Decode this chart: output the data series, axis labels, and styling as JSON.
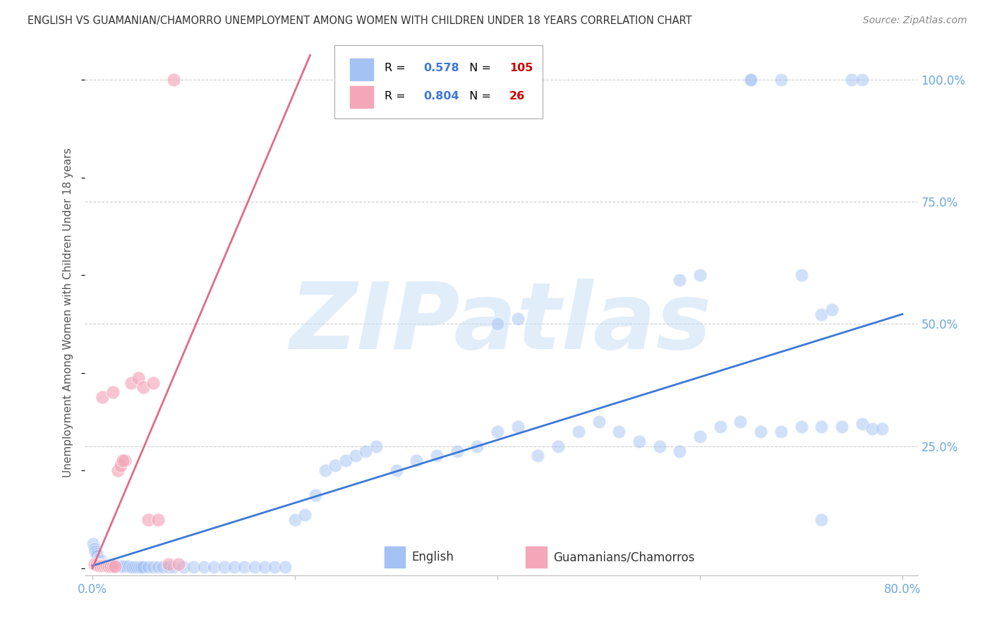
{
  "title": "ENGLISH VS GUAMANIAN/CHAMORRO UNEMPLOYMENT AMONG WOMEN WITH CHILDREN UNDER 18 YEARS CORRELATION CHART",
  "source": "Source: ZipAtlas.com",
  "ylabel": "Unemployment Among Women with Children Under 18 years",
  "xlim": [
    -0.008,
    0.815
  ],
  "ylim": [
    -0.015,
    1.06
  ],
  "english_R": 0.578,
  "english_N": 105,
  "chamorro_R": 0.804,
  "chamorro_N": 26,
  "english_scatter_color": "#a4c2f4",
  "chamorro_scatter_color": "#f4a7b9",
  "english_line_color": "#3c78d8",
  "chamorro_line_color": "#e06c8a",
  "R_label_color": "#000000",
  "R_value_color": "#3c78d8",
  "N_label_color": "#000000",
  "N_value_color": "#cc0000",
  "tick_label_color": "#6fa8dc",
  "ylabel_color": "#555555",
  "title_color": "#333333",
  "source_color": "#888888",
  "grid_color": "#d0d0d0",
  "watermark_color": "#c5dff5",
  "watermark_text": "ZIPatlas",
  "legend_label_english": "English",
  "legend_label_chamorro": "Guamanians/Chamorros",
  "x_ticks": [
    0.0,
    0.2,
    0.4,
    0.6,
    0.8
  ],
  "x_tick_labels": [
    "0.0%",
    "",
    "",
    "",
    "80.0%"
  ],
  "y_ticks": [
    0.0,
    0.25,
    0.5,
    0.75,
    1.0
  ],
  "y_tick_labels": [
    "",
    "25.0%",
    "50.0%",
    "75.0%",
    "100.0%"
  ],
  "english_x": [
    0.001,
    0.002,
    0.003,
    0.004,
    0.005,
    0.006,
    0.007,
    0.008,
    0.009,
    0.01,
    0.011,
    0.012,
    0.013,
    0.014,
    0.015,
    0.016,
    0.017,
    0.018,
    0.019,
    0.02,
    0.021,
    0.022,
    0.023,
    0.024,
    0.025,
    0.026,
    0.027,
    0.028,
    0.029,
    0.03,
    0.032,
    0.034,
    0.036,
    0.038,
    0.04,
    0.042,
    0.044,
    0.046,
    0.048,
    0.05,
    0.055,
    0.06,
    0.065,
    0.07,
    0.075,
    0.08,
    0.09,
    0.1,
    0.11,
    0.12,
    0.13,
    0.14,
    0.15,
    0.16,
    0.17,
    0.18,
    0.19,
    0.2,
    0.21,
    0.22,
    0.23,
    0.24,
    0.25,
    0.26,
    0.27,
    0.28,
    0.3,
    0.32,
    0.34,
    0.36,
    0.38,
    0.4,
    0.42,
    0.44,
    0.46,
    0.48,
    0.5,
    0.52,
    0.54,
    0.56,
    0.58,
    0.6,
    0.62,
    0.64,
    0.66,
    0.68,
    0.7,
    0.72,
    0.74,
    0.76,
    0.4,
    0.42,
    0.58,
    0.6,
    0.65,
    0.68,
    0.7,
    0.72,
    0.73,
    0.75,
    0.76,
    0.77,
    0.78,
    0.72,
    0.65
  ],
  "english_y": [
    0.05,
    0.04,
    0.035,
    0.03,
    0.025,
    0.02,
    0.018,
    0.015,
    0.015,
    0.012,
    0.01,
    0.01,
    0.008,
    0.008,
    0.008,
    0.007,
    0.007,
    0.006,
    0.006,
    0.005,
    0.005,
    0.005,
    0.005,
    0.005,
    0.005,
    0.005,
    0.004,
    0.004,
    0.004,
    0.004,
    0.004,
    0.004,
    0.004,
    0.003,
    0.003,
    0.003,
    0.003,
    0.003,
    0.003,
    0.003,
    0.003,
    0.003,
    0.003,
    0.003,
    0.003,
    0.003,
    0.003,
    0.003,
    0.003,
    0.003,
    0.003,
    0.003,
    0.003,
    0.003,
    0.003,
    0.003,
    0.003,
    0.1,
    0.11,
    0.15,
    0.2,
    0.21,
    0.22,
    0.23,
    0.24,
    0.25,
    0.2,
    0.22,
    0.23,
    0.24,
    0.25,
    0.28,
    0.29,
    0.23,
    0.25,
    0.28,
    0.3,
    0.28,
    0.26,
    0.25,
    0.24,
    0.27,
    0.29,
    0.3,
    0.28,
    0.28,
    0.29,
    0.29,
    0.29,
    0.295,
    0.5,
    0.51,
    0.59,
    0.6,
    1.0,
    1.0,
    0.6,
    0.52,
    0.53,
    1.0,
    1.0,
    0.285,
    0.285,
    0.1,
    1.0
  ],
  "chamorro_x": [
    0.002,
    0.004,
    0.006,
    0.008,
    0.01,
    0.012,
    0.014,
    0.016,
    0.018,
    0.02,
    0.022,
    0.025,
    0.028,
    0.032,
    0.038,
    0.045,
    0.055,
    0.065,
    0.075,
    0.085,
    0.01,
    0.02,
    0.03,
    0.05,
    0.06,
    0.08
  ],
  "chamorro_y": [
    0.008,
    0.007,
    0.006,
    0.006,
    0.005,
    0.005,
    0.005,
    0.004,
    0.004,
    0.004,
    0.004,
    0.2,
    0.21,
    0.22,
    0.38,
    0.39,
    0.1,
    0.1,
    0.008,
    0.008,
    0.35,
    0.36,
    0.22,
    0.37,
    0.38,
    1.0
  ],
  "english_line_x": [
    0.0,
    0.8
  ],
  "english_line_y": [
    0.005,
    0.52
  ],
  "chamorro_line_x": [
    0.0,
    0.215
  ],
  "chamorro_line_y": [
    0.0,
    1.05
  ]
}
